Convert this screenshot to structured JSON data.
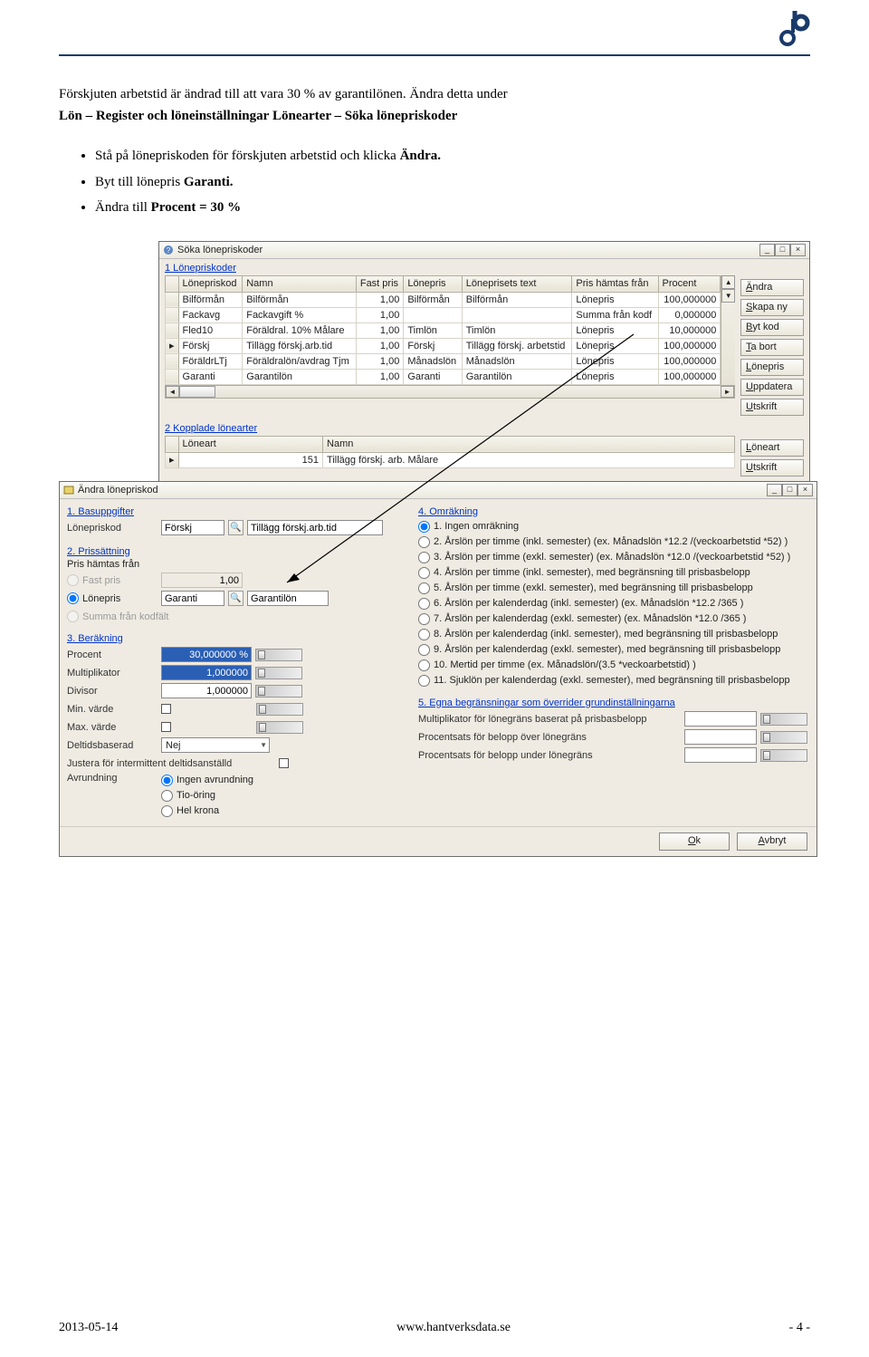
{
  "doc": {
    "para1": "Förskjuten arbetstid är ändrad till att vara 30 % av garantilönen. Ändra detta under",
    "para2_prefix": "Lön – Register och löneinställningar",
    "para2_mid": " ",
    "para2_suffix": "Lönearter – Söka lönepriskoder",
    "bullet1_a": "Stå på lönepriskoden för förskjuten arbetstid och klicka ",
    "bullet1_b": "Ändra.",
    "bullet2_a": "Byt till lönepris ",
    "bullet2_b": "Garanti.",
    "bullet3_a": "Ändra till ",
    "bullet3_b": "Procent = 30 %"
  },
  "footer": {
    "left": "2013-05-14",
    "center": "www.hantverksdata.se",
    "right": "- 4 -"
  },
  "win1": {
    "title": "Söka lönepriskoder",
    "section1": "1 Lönepriskoder",
    "section2": "2 Kopplade lönearter",
    "cols": [
      "Lönepriskod",
      "Namn",
      "Fast pris",
      "Lönepris",
      "Löneprisets text",
      "Pris hämtas från",
      "Procent"
    ],
    "rows": [
      [
        "Bilförmån",
        "Bilförmån",
        "1,00",
        "Bilförmån",
        "Bilförmån",
        "Lönepris",
        "100,000000"
      ],
      [
        "Fackavg",
        "Fackavgift %",
        "1,00",
        "",
        "",
        "Summa från kodf",
        "0,000000"
      ],
      [
        "Fled10",
        "Föräldral. 10% Målare",
        "1,00",
        "Timlön",
        "Timlön",
        "Lönepris",
        "10,000000"
      ],
      [
        "Förskj",
        "Tillägg förskj.arb.tid",
        "1,00",
        "Förskj",
        "Tillägg förskj. arbetstid",
        "Lönepris",
        "100,000000"
      ],
      [
        "FöräldrLTj",
        "Föräldralön/avdrag Tjm",
        "1,00",
        "Månadslön",
        "Månadslön",
        "Lönepris",
        "100,000000"
      ],
      [
        "Garanti",
        "Garantilön",
        "1,00",
        "Garanti",
        "Garantilön",
        "Lönepris",
        "100,000000"
      ]
    ],
    "cols2": [
      "Löneart",
      "Namn"
    ],
    "rows2": [
      [
        "151",
        "Tillägg förskj. arb. Målare"
      ]
    ],
    "buttons": [
      "Ändra",
      "Skapa ny",
      "Byt kod",
      "Ta bort",
      "Lönepris",
      "Uppdatera",
      "Utskrift"
    ],
    "buttons2": [
      "Löneart",
      "Utskrift"
    ]
  },
  "win2": {
    "title": "Ändra lönepriskod",
    "s1": "1. Basuppgifter",
    "s2": "2. Prissättning",
    "s3": "3. Beräkning",
    "s4": "4. Omräkning",
    "s5": "5. Egna begränsningar som överrider grundinställningarna",
    "lbl_lonepriskod": "Lönepriskod",
    "val_lonepriskod": "Förskj",
    "val_lonepriskod_desc": "Tillägg förskj.arb.tid",
    "lbl_pris": "Pris hämtas från",
    "opt_fastpris": "Fast pris",
    "val_fastpris": "1,00",
    "opt_lonepris": "Lönepris",
    "val_lonepris": "Garanti",
    "val_lonepris_desc": "Garantilön",
    "opt_summa": "Summa från kodfält",
    "lbl_procent": "Procent",
    "val_procent": "30,000000 %",
    "lbl_mult": "Multiplikator",
    "val_mult": "1,000000",
    "lbl_div": "Divisor",
    "val_div": "1,000000",
    "lbl_min": "Min. värde",
    "lbl_max": "Max. värde",
    "lbl_deltid": "Deltidsbaserad",
    "val_deltid": "Nej",
    "lbl_justera": "Justera för intermittent deltidsanställd",
    "lbl_avrund": "Avrundning",
    "opt_avr1": "Ingen avrundning",
    "opt_avr2": "Tio-öring",
    "opt_avr3": "Hel krona",
    "omr": [
      "1. Ingen omräkning",
      "2. Årslön per timme (inkl. semester) (ex. Månadslön *12.2 /(veckoarbetstid *52) )",
      "3. Årslön per timme (exkl. semester) (ex. Månadslön *12.0 /(veckoarbetstid *52) )",
      "4. Årslön per timme (inkl. semester), med begränsning till prisbasbelopp",
      "5. Årslön per timme (exkl. semester), med begränsning till prisbasbelopp",
      "6. Årslön per kalenderdag (inkl. semester) (ex. Månadslön *12.2 /365 )",
      "7. Årslön per kalenderdag (exkl. semester) (ex. Månadslön *12.0 /365 )",
      "8. Årslön per kalenderdag (inkl. semester), med begränsning till prisbasbelopp",
      "9. Årslön per kalenderdag (exkl. semester), med begränsning till prisbasbelopp",
      "10. Mertid per timme (ex. Månadslön/(3.5 *veckoarbetstid) )",
      "11. Sjuklön per kalenderdag (exkl. semester), med begränsning till prisbasbelopp"
    ],
    "lbl_mult2": "Multiplikator för lönegräns baserat på prisbasbelopp",
    "lbl_proc_over": "Procentsats för belopp över lönegräns",
    "lbl_proc_under": "Procentsats för belopp under lönegräns",
    "btn_ok": "Ok",
    "btn_avbryt": "Avbryt"
  }
}
